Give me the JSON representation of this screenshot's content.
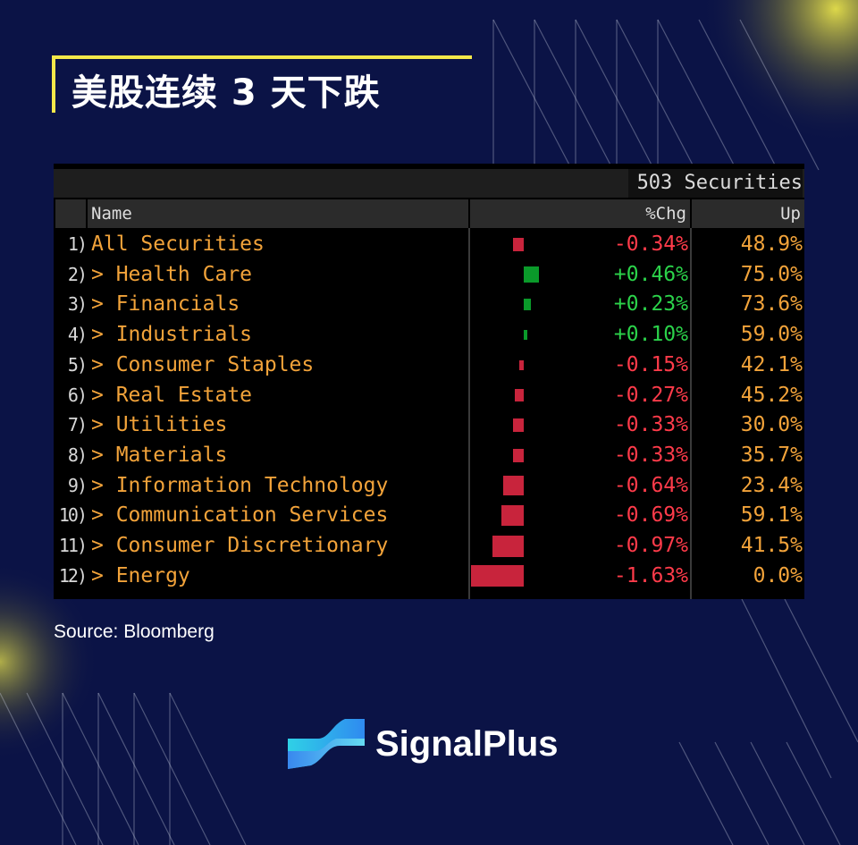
{
  "title": "美股连续 3 天下跌",
  "source": "Source: Bloomberg",
  "brand": "SignalPlus",
  "terminal": {
    "securities": "503 Securities",
    "headers": {
      "name": "Name",
      "chg": "%Chg",
      "up": "Up"
    }
  },
  "colors": {
    "background": "#0b1346",
    "accent": "#f4e84a",
    "positive": "#2bd24a",
    "negative": "#ff3b4a",
    "bar_positive": "#0a9a2a",
    "bar_negative": "#c8243c",
    "label": "#f2a33a"
  },
  "chart_data": {
    "type": "table",
    "columns": [
      "Name",
      "%Chg",
      "Up"
    ],
    "rows": [
      {
        "index": "1)",
        "name": "All Securities",
        "chg": -0.34,
        "chg_label": "-0.34%",
        "up": "48.9%"
      },
      {
        "index": "2)",
        "name": "> Health Care",
        "chg": 0.46,
        "chg_label": "+0.46%",
        "up": "75.0%"
      },
      {
        "index": "3)",
        "name": "> Financials",
        "chg": 0.23,
        "chg_label": "+0.23%",
        "up": "73.6%"
      },
      {
        "index": "4)",
        "name": "> Industrials",
        "chg": 0.1,
        "chg_label": "+0.10%",
        "up": "59.0%"
      },
      {
        "index": "5)",
        "name": "> Consumer Staples",
        "chg": -0.15,
        "chg_label": "-0.15%",
        "up": "42.1%"
      },
      {
        "index": "6)",
        "name": "> Real Estate",
        "chg": -0.27,
        "chg_label": "-0.27%",
        "up": "45.2%"
      },
      {
        "index": "7)",
        "name": "> Utilities",
        "chg": -0.33,
        "chg_label": "-0.33%",
        "up": "30.0%"
      },
      {
        "index": "8)",
        "name": "> Materials",
        "chg": -0.33,
        "chg_label": "-0.33%",
        "up": "35.7%"
      },
      {
        "index": "9)",
        "name": "> Information Technology",
        "chg": -0.64,
        "chg_label": "-0.64%",
        "up": "23.4%"
      },
      {
        "index": "10)",
        "name": "> Communication Services",
        "chg": -0.69,
        "chg_label": "-0.69%",
        "up": "59.1%"
      },
      {
        "index": "11)",
        "name": "> Consumer Discretionary",
        "chg": -0.97,
        "chg_label": "-0.97%",
        "up": "41.5%"
      },
      {
        "index": "12)",
        "name": "> Energy",
        "chg": -1.63,
        "chg_label": "-1.63%",
        "up": "0.0%"
      }
    ]
  }
}
